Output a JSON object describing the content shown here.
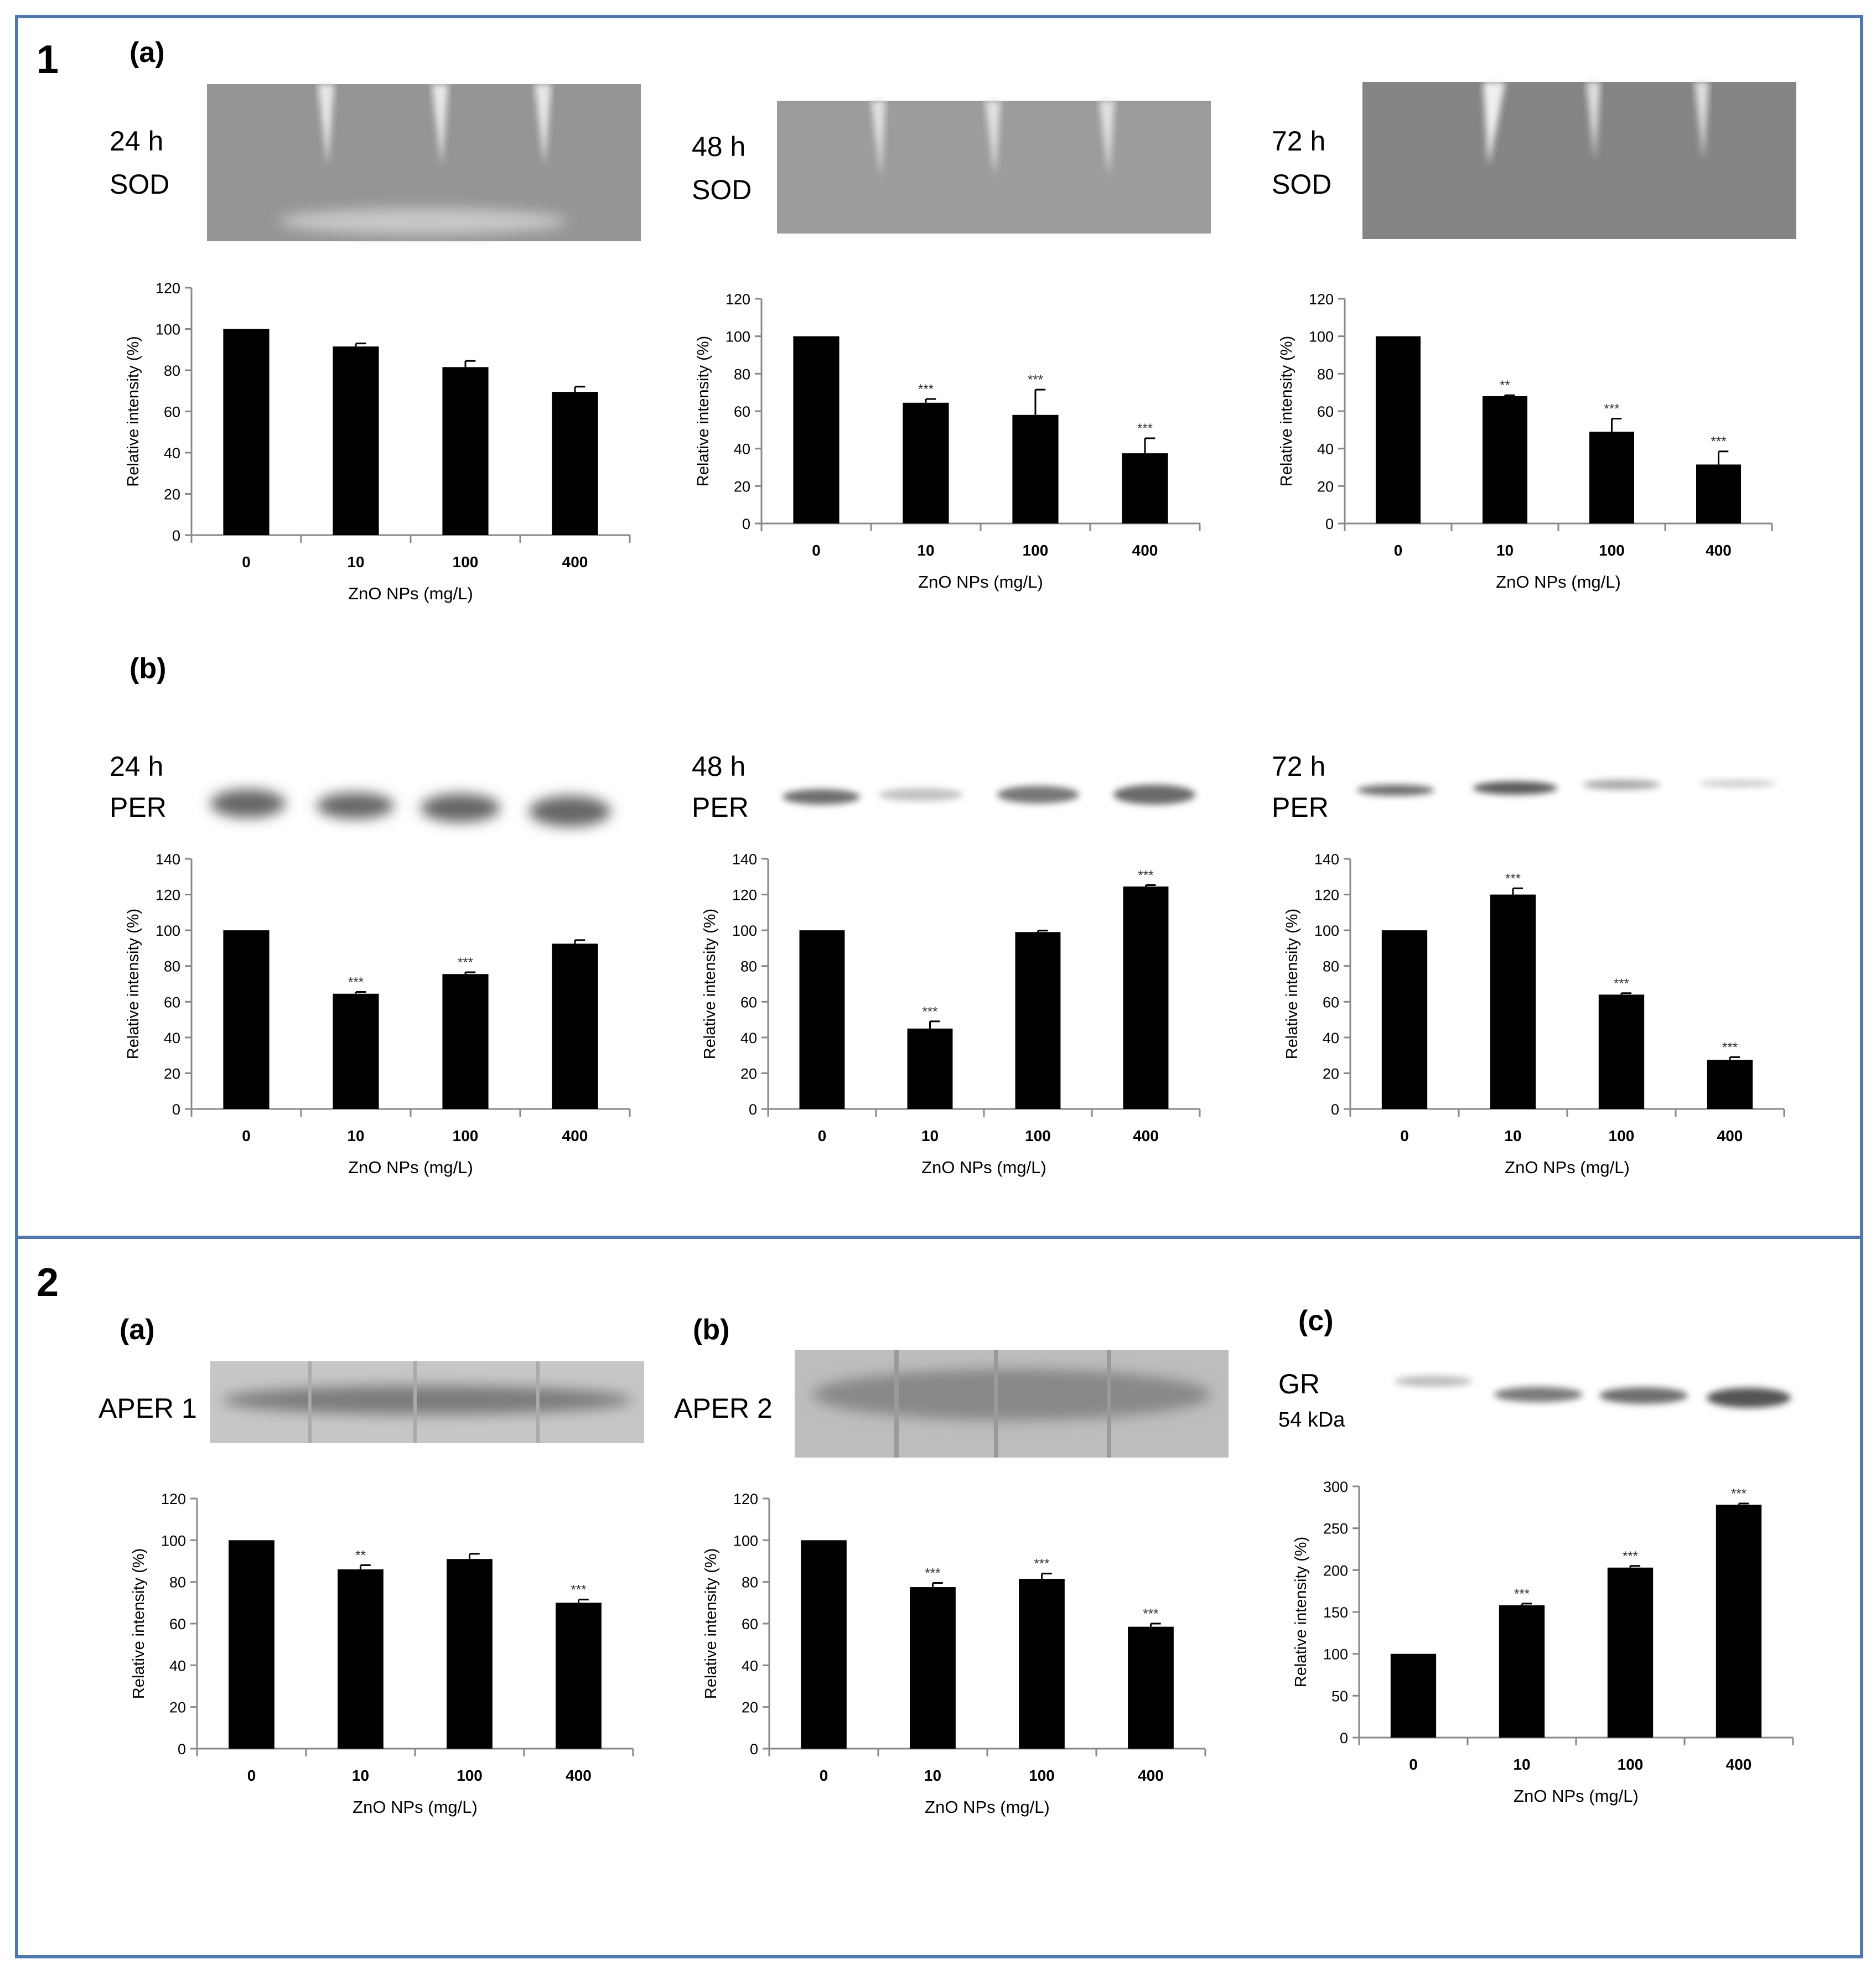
{
  "figure": {
    "sections": [
      {
        "number": "1",
        "panels": [
          {
            "label": "(a)"
          },
          {
            "label": "(b)"
          }
        ]
      },
      {
        "number": "2",
        "panels": [
          {
            "label": "(a)"
          },
          {
            "label": "(b)"
          },
          {
            "label": "(c)"
          }
        ]
      }
    ],
    "blots": [
      {
        "time": "24 h",
        "protein": "SOD",
        "intensity": "strong"
      },
      {
        "time": "48 h",
        "protein": "SOD",
        "intensity": "strong"
      },
      {
        "time": "72 h",
        "protein": "SOD",
        "intensity": "strong"
      },
      {
        "time": "24 h",
        "protein": "PER",
        "intensity": "band"
      },
      {
        "time": "48 h",
        "protein": "PER",
        "intensity": "band"
      },
      {
        "time": "72 h",
        "protein": "PER",
        "intensity": "band"
      },
      {
        "time": "",
        "protein": "APER 1",
        "intensity": "strong"
      },
      {
        "time": "",
        "protein": "APER 2",
        "intensity": "strong"
      },
      {
        "time": "",
        "protein": "GR",
        "subtitle": "54 kDa",
        "intensity": "band"
      }
    ],
    "colors": {
      "frame": "#4f79ad",
      "bars": "#000000",
      "axis": "#888888"
    }
  },
  "chart_data": [
    {
      "id": "sod24",
      "type": "bar",
      "categories": [
        "0",
        "10",
        "100",
        "400"
      ],
      "values": [
        100,
        91.5,
        81.5,
        69.5
      ],
      "errors": [
        0,
        1.5,
        3,
        2.5
      ],
      "significance": [
        "",
        "",
        "",
        ""
      ],
      "xlabel": "ZnO NPs (mg/L)",
      "ylabel": "Relative intensity (%)",
      "ylim": [
        0,
        120
      ],
      "yticks": [
        0,
        20,
        40,
        60,
        80,
        100,
        120
      ]
    },
    {
      "id": "sod48",
      "type": "bar",
      "categories": [
        "0",
        "10",
        "100",
        "400"
      ],
      "values": [
        100,
        64.5,
        58,
        37.5
      ],
      "errors": [
        0,
        2,
        13.5,
        8
      ],
      "significance": [
        "",
        "***",
        "***",
        "***"
      ],
      "xlabel": "ZnO NPs (mg/L)",
      "ylabel": "Relative intensity (%)",
      "ylim": [
        0,
        120
      ],
      "yticks": [
        0,
        20,
        40,
        60,
        80,
        100,
        120
      ]
    },
    {
      "id": "sod72",
      "type": "bar",
      "categories": [
        "0",
        "10",
        "100",
        "400"
      ],
      "values": [
        100,
        68,
        49,
        31.5
      ],
      "errors": [
        0,
        0.5,
        7,
        7
      ],
      "significance": [
        "",
        "**",
        "***",
        "***"
      ],
      "xlabel": "ZnO NPs (mg/L)",
      "ylabel": "Relative intensity (%)",
      "ylim": [
        0,
        120
      ],
      "yticks": [
        0,
        20,
        40,
        60,
        80,
        100,
        120
      ]
    },
    {
      "id": "per24",
      "type": "bar",
      "categories": [
        "0",
        "10",
        "100",
        "400"
      ],
      "values": [
        100,
        64.5,
        75.5,
        92.5
      ],
      "errors": [
        0,
        1,
        1,
        2
      ],
      "significance": [
        "",
        "***",
        "***",
        ""
      ],
      "xlabel": "ZnO NPs (mg/L)",
      "ylabel": "Relative intensity (%)",
      "ylim": [
        0,
        140
      ],
      "yticks": [
        0,
        20,
        40,
        60,
        80,
        100,
        120,
        140
      ]
    },
    {
      "id": "per48",
      "type": "bar",
      "categories": [
        "0",
        "10",
        "100",
        "400"
      ],
      "values": [
        100,
        45,
        99,
        124.5
      ],
      "errors": [
        0,
        4,
        0.8,
        0.8
      ],
      "significance": [
        "",
        "***",
        "",
        "***"
      ],
      "xlabel": "ZnO NPs (mg/L)",
      "ylabel": "Relative intensity (%)",
      "ylim": [
        0,
        140
      ],
      "yticks": [
        0,
        20,
        40,
        60,
        80,
        100,
        120,
        140
      ]
    },
    {
      "id": "per72",
      "type": "bar",
      "categories": [
        "0",
        "10",
        "100",
        "400"
      ],
      "values": [
        100,
        120,
        64,
        27.5
      ],
      "errors": [
        0,
        3.5,
        0.8,
        1.5
      ],
      "significance": [
        "",
        "***",
        "***",
        "***"
      ],
      "xlabel": "ZnO NPs (mg/L)",
      "ylabel": "Relative intensity (%)",
      "ylim": [
        0,
        140
      ],
      "yticks": [
        0,
        20,
        40,
        60,
        80,
        100,
        120,
        140
      ]
    },
    {
      "id": "aper1",
      "type": "bar",
      "categories": [
        "0",
        "10",
        "100",
        "400"
      ],
      "values": [
        100,
        86,
        91,
        70
      ],
      "errors": [
        0,
        2,
        2.5,
        1.5
      ],
      "significance": [
        "",
        "**",
        "",
        "***"
      ],
      "xlabel": "ZnO NPs (mg/L)",
      "ylabel": "Relative intensity (%)",
      "ylim": [
        0,
        120
      ],
      "yticks": [
        0,
        20,
        40,
        60,
        80,
        100,
        120
      ]
    },
    {
      "id": "aper2",
      "type": "bar",
      "categories": [
        "0",
        "10",
        "100",
        "400"
      ],
      "values": [
        100,
        77.5,
        81.5,
        58.5
      ],
      "errors": [
        0,
        2,
        2.5,
        1.5
      ],
      "significance": [
        "",
        "***",
        "***",
        "***"
      ],
      "xlabel": "ZnO NPs (mg/L)",
      "ylabel": "Relative intensity (%)",
      "ylim": [
        0,
        120
      ],
      "yticks": [
        0,
        20,
        40,
        60,
        80,
        100,
        120
      ]
    },
    {
      "id": "gr",
      "type": "bar",
      "categories": [
        "0",
        "10",
        "100",
        "400"
      ],
      "values": [
        100,
        158,
        203,
        278
      ],
      "errors": [
        0,
        2,
        2,
        1.5
      ],
      "significance": [
        "",
        "***",
        "***",
        "***"
      ],
      "xlabel": "ZnO NPs (mg/L)",
      "ylabel": "Relative intensity (%)",
      "ylim": [
        0,
        300
      ],
      "yticks": [
        0,
        50,
        100,
        150,
        200,
        250,
        300
      ]
    }
  ]
}
